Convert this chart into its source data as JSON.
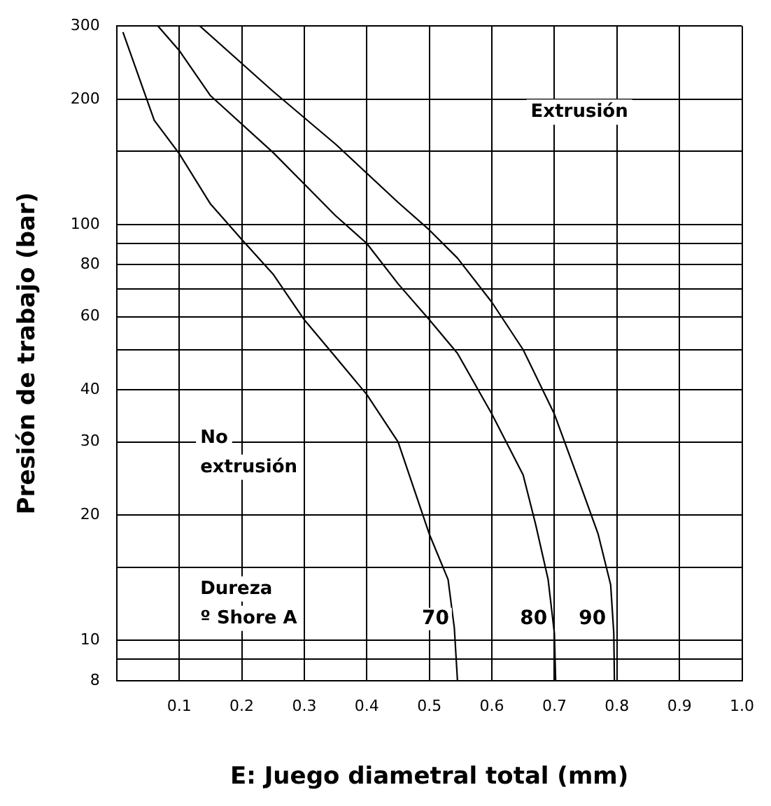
{
  "chart_data": {
    "type": "line",
    "xlabel": "E: Juego diametral total (mm)",
    "ylabel": "Presión de trabajo (bar)",
    "log": "y",
    "grid": true,
    "xlim": [
      0,
      1.0
    ],
    "xticks": [
      0.1,
      0.2,
      0.3,
      0.4,
      0.5,
      0.6,
      0.7,
      0.8,
      0.9,
      {
        "value": 1.0,
        "label": "1.0"
      }
    ],
    "ylim": [
      8,
      300
    ],
    "yticks": [
      8,
      {
        "value": 9,
        "label": null
      },
      10,
      {
        "value": 15,
        "label": null
      },
      20,
      30,
      40,
      {
        "value": 50,
        "label": null
      },
      60,
      {
        "value": 70,
        "label": null
      },
      80,
      {
        "value": 90,
        "label": null
      },
      100,
      {
        "value": 150,
        "label": null
      },
      200,
      300
    ],
    "annotations": [
      "Extrusión",
      "No\nextrusión",
      "Dureza\nº Shore A"
    ],
    "series": [
      {
        "name": "70",
        "color": "#000000",
        "x": [
          0.01,
          0.06,
          0.1,
          0.15,
          0.2,
          0.25,
          0.3,
          0.35,
          0.4,
          0.45,
          0.5,
          0.53,
          0.54,
          0.545
        ],
        "values": [
          290,
          178,
          148,
          112,
          92,
          76,
          59,
          48,
          39,
          30,
          18,
          14,
          10.7,
          8
        ]
      },
      {
        "name": "80",
        "color": "#000000",
        "x": [
          0.066,
          0.1,
          0.15,
          0.25,
          0.35,
          0.4,
          0.45,
          0.5,
          0.545,
          0.6,
          0.65,
          0.67,
          0.69,
          0.7,
          0.702
        ],
        "values": [
          300,
          262,
          204,
          149,
          105,
          90,
          72,
          59,
          49,
          35,
          25,
          19,
          14,
          10.4,
          8
        ]
      },
      {
        "name": "90",
        "color": "#000000",
        "x": [
          0.133,
          0.25,
          0.35,
          0.45,
          0.5,
          0.545,
          0.6,
          0.65,
          0.7,
          0.74,
          0.77,
          0.79,
          0.795,
          0.796
        ],
        "values": [
          300,
          209,
          156,
          113,
          97,
          83,
          65,
          50,
          35,
          24,
          18,
          13.6,
          10.4,
          8
        ]
      }
    ]
  }
}
